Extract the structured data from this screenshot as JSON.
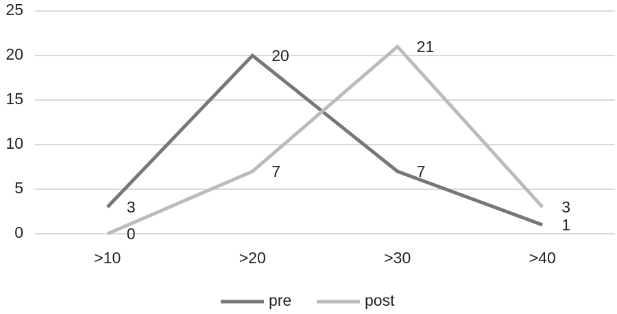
{
  "chart_data": {
    "type": "line",
    "categories": [
      ">10",
      ">20",
      ">30",
      ">40"
    ],
    "series": [
      {
        "name": "pre",
        "color": "#777777",
        "values": [
          3,
          20,
          7,
          1
        ]
      },
      {
        "name": "post",
        "color": "#bbbbbb",
        "values": [
          0,
          7,
          21,
          3
        ]
      }
    ],
    "ylim": [
      0,
      25
    ],
    "yticks": [
      0,
      5,
      10,
      15,
      20,
      25
    ],
    "grid": true,
    "legend": "bottom"
  }
}
